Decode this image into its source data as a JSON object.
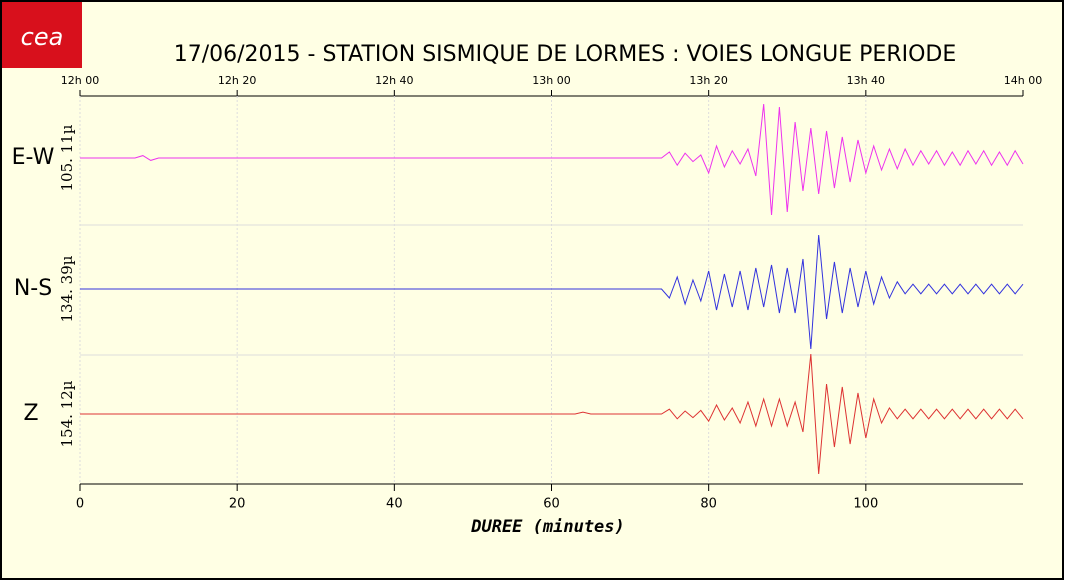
{
  "chart_data": {
    "type": "seismogram",
    "logo": "cea",
    "title": "17/06/2015  -  STATION SISMIQUE DE LORMES : VOIES LONGUE PERIODE",
    "x_label": "DUREE (minutes)",
    "xlim": [
      0,
      120
    ],
    "xticks": [
      0,
      20,
      40,
      60,
      80,
      100
    ],
    "top_ticks": [
      {
        "value": 0,
        "label": "12h 00"
      },
      {
        "value": 20,
        "label": "12h 20"
      },
      {
        "value": 40,
        "label": "12h 40"
      },
      {
        "value": 60,
        "label": "13h 00"
      },
      {
        "value": 80,
        "label": "13h 20"
      },
      {
        "value": 100,
        "label": "13h 40"
      },
      {
        "value": 120,
        "label": "14h 00"
      }
    ],
    "ylim": [
      -1,
      1
    ],
    "grid": true,
    "x": [
      0,
      1,
      2,
      3,
      4,
      5,
      6,
      7,
      8,
      9,
      10,
      11,
      12,
      13,
      14,
      15,
      16,
      17,
      18,
      19,
      20,
      21,
      22,
      23,
      24,
      25,
      26,
      27,
      28,
      29,
      30,
      31,
      32,
      33,
      34,
      35,
      36,
      37,
      38,
      39,
      40,
      41,
      42,
      43,
      44,
      45,
      46,
      47,
      48,
      49,
      50,
      51,
      52,
      53,
      54,
      55,
      56,
      57,
      58,
      59,
      60,
      61,
      62,
      63,
      64,
      65,
      66,
      67,
      68,
      69,
      70,
      71,
      72,
      73,
      74,
      75,
      76,
      77,
      78,
      79,
      80,
      81,
      82,
      83,
      84,
      85,
      86,
      87,
      88,
      89,
      90,
      91,
      92,
      93,
      94,
      95,
      96,
      97,
      98,
      99,
      100,
      101,
      102,
      103,
      104,
      105,
      106,
      107,
      108,
      109,
      110,
      111,
      112,
      113,
      114,
      115,
      116,
      117,
      118,
      119,
      120
    ],
    "series": [
      {
        "name": "E-W",
        "scale": "105. 11µ",
        "color": "#ee33ee",
        "values": [
          0,
          0,
          0,
          0,
          0,
          0,
          0,
          0,
          0.04,
          -0.04,
          0,
          0,
          0,
          0,
          0,
          0,
          0,
          0,
          0,
          0,
          0,
          0,
          0,
          0,
          0,
          0,
          0,
          0,
          0,
          0,
          0,
          0,
          0,
          0,
          0,
          0,
          0,
          0,
          0,
          0,
          0,
          0,
          0,
          0,
          0,
          0,
          0,
          0,
          0,
          0,
          0,
          0,
          0,
          0,
          0,
          0,
          0,
          0,
          0,
          0,
          0,
          0,
          0,
          0,
          0,
          0,
          0,
          0,
          0,
          0,
          0,
          0,
          0,
          0,
          0,
          0.1,
          -0.12,
          0.08,
          -0.06,
          0.05,
          -0.25,
          0.2,
          -0.15,
          0.12,
          -0.1,
          0.15,
          -0.3,
          0.9,
          -0.95,
          0.85,
          -0.9,
          0.6,
          -0.55,
          0.5,
          -0.6,
          0.45,
          -0.5,
          0.35,
          -0.4,
          0.3,
          -0.25,
          0.2,
          -0.2,
          0.15,
          -0.18,
          0.15,
          -0.12,
          0.12,
          -0.1,
          0.12,
          -0.12,
          0.1,
          -0.12,
          0.12,
          -0.1,
          0.12,
          -0.12,
          0.1,
          -0.12,
          0.12,
          -0.1
        ]
      },
      {
        "name": "N-S",
        "scale": "134. 39µ",
        "color": "#3333dd",
        "values": [
          0,
          0,
          0,
          0,
          0,
          0,
          0,
          0,
          0,
          0,
          0,
          0,
          0,
          0,
          0,
          0,
          0,
          0,
          0,
          0,
          0,
          0,
          0,
          0,
          0,
          0,
          0,
          0,
          0,
          0,
          0,
          0,
          0,
          0,
          0,
          0,
          0,
          0,
          0,
          0,
          0,
          0,
          0,
          0,
          0,
          0,
          0,
          0,
          0,
          0,
          0,
          0,
          0,
          0,
          0,
          0,
          0,
          0,
          0,
          0,
          0,
          0,
          0,
          0,
          0,
          0,
          0,
          0,
          0,
          0,
          0,
          0,
          0,
          0,
          0,
          -0.15,
          0.2,
          -0.25,
          0.15,
          -0.2,
          0.3,
          -0.35,
          0.25,
          -0.3,
          0.3,
          -0.35,
          0.35,
          -0.3,
          0.4,
          -0.4,
          0.35,
          -0.4,
          0.5,
          -1,
          0.9,
          -0.5,
          0.45,
          -0.4,
          0.35,
          -0.3,
          0.3,
          -0.25,
          0.2,
          -0.15,
          0.12,
          -0.08,
          0.08,
          -0.08,
          0.08,
          -0.08,
          0.08,
          -0.08,
          0.08,
          -0.08,
          0.08,
          -0.08,
          0.08,
          -0.08,
          0.08,
          -0.08,
          0.08
        ]
      },
      {
        "name": "Z",
        "scale": "154. 12µ",
        "color": "#dd3333",
        "values": [
          0,
          0,
          0,
          0,
          0,
          0,
          0,
          0,
          0,
          0,
          0,
          0,
          0,
          0,
          0,
          0,
          0,
          0,
          0,
          0,
          0,
          0,
          0,
          0,
          0,
          0,
          0,
          0,
          0,
          0,
          0,
          0,
          0,
          0,
          0,
          0,
          0,
          0,
          0,
          0,
          0,
          0,
          0,
          0,
          0,
          0,
          0,
          0,
          0,
          0,
          0,
          0,
          0,
          0,
          0,
          0,
          0,
          0,
          0,
          0,
          0,
          0,
          0,
          0,
          0.03,
          0,
          0,
          0,
          0,
          0,
          0,
          0,
          0,
          0,
          0,
          0.08,
          -0.08,
          0.05,
          -0.06,
          0.06,
          -0.12,
          0.15,
          -0.1,
          0.1,
          -0.15,
          0.2,
          -0.2,
          0.25,
          -0.2,
          0.25,
          -0.2,
          0.2,
          -0.3,
          1,
          -1,
          0.5,
          -0.55,
          0.45,
          -0.5,
          0.35,
          -0.4,
          0.25,
          -0.15,
          0.1,
          -0.08,
          0.08,
          -0.08,
          0.08,
          -0.08,
          0.08,
          -0.08,
          0.08,
          -0.08,
          0.08,
          -0.08,
          0.08,
          -0.08,
          0.08,
          -0.08,
          0.08,
          -0.08
        ]
      }
    ]
  }
}
